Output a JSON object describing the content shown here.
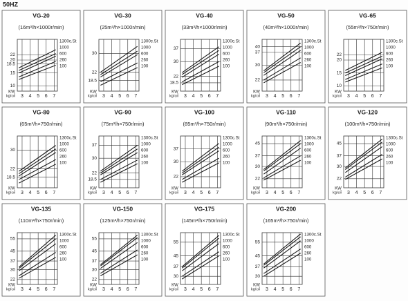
{
  "page_title": "50HZ",
  "chart_data": [
    {
      "type": "line",
      "title": "VG-20",
      "subtitle": "(16m³/h×1000r/min)",
      "xlabel": "kg/㎠",
      "ylabel": "KW",
      "x": [
        2.6,
        7.2
      ],
      "xlim": [
        2.4,
        7.4
      ],
      "xticks": [
        3,
        4,
        5,
        6,
        7
      ],
      "ylim": [
        8,
        28
      ],
      "yticks": [
        10,
        15,
        18.5,
        20,
        22
      ],
      "grid": true,
      "line_color": "#1a1a1a",
      "series": [
        {
          "name": "1300c.St",
          "values": [
            17,
            24
          ]
        },
        {
          "name": "1000",
          "values": [
            16,
            22.5
          ]
        },
        {
          "name": "600",
          "values": [
            15,
            21.5
          ]
        },
        {
          "name": "260",
          "values": [
            13.5,
            19.5
          ]
        },
        {
          "name": "100",
          "values": [
            12.5,
            18
          ]
        }
      ]
    },
    {
      "type": "line",
      "title": "VG-30",
      "subtitle": "(25m³/h×1000r/min)",
      "xlabel": "kg/㎠",
      "ylabel": "KW",
      "x": [
        2.6,
        7.2
      ],
      "xlim": [
        2.4,
        7.4
      ],
      "xticks": [
        3,
        4,
        5,
        6,
        7
      ],
      "ylim": [
        14,
        36
      ],
      "yticks": [
        18.5,
        22,
        30
      ],
      "grid": true,
      "line_color": "#1a1a1a",
      "series": [
        {
          "name": "1300c.St",
          "values": [
            22,
            33
          ]
        },
        {
          "name": "1000",
          "values": [
            21,
            31
          ]
        },
        {
          "name": "600",
          "values": [
            20,
            29.5
          ]
        },
        {
          "name": "260",
          "values": [
            18,
            26
          ]
        },
        {
          "name": "100",
          "values": [
            16.5,
            24
          ]
        }
      ]
    },
    {
      "type": "line",
      "title": "VG-40",
      "subtitle": "(33m³/h×1000r/min)",
      "xlabel": "kg/㎠",
      "ylabel": "KW",
      "x": [
        2.6,
        7.2
      ],
      "xlim": [
        2.4,
        7.4
      ],
      "xticks": [
        3,
        4,
        5,
        6,
        7
      ],
      "ylim": [
        14,
        42
      ],
      "yticks": [
        18.5,
        22,
        30,
        37
      ],
      "grid": true,
      "line_color": "#1a1a1a",
      "series": [
        {
          "name": "1300c.St",
          "values": [
            24,
            38
          ]
        },
        {
          "name": "1000",
          "values": [
            23,
            36
          ]
        },
        {
          "name": "600",
          "values": [
            21.5,
            34
          ]
        },
        {
          "name": "260",
          "values": [
            19,
            30
          ]
        },
        {
          "name": "100",
          "values": [
            17.5,
            27.5
          ]
        }
      ]
    },
    {
      "type": "line",
      "title": "VG-50",
      "subtitle": "(40m³/h×1000r/min)",
      "xlabel": "kg/㎠",
      "ylabel": "KW",
      "x": [
        2.6,
        7.2
      ],
      "xlim": [
        2.4,
        7.4
      ],
      "xticks": [
        3,
        4,
        5,
        6,
        7
      ],
      "ylim": [
        16,
        44
      ],
      "yticks": [
        22,
        30,
        37,
        40
      ],
      "grid": true,
      "line_color": "#1a1a1a",
      "series": [
        {
          "name": "1300c.St",
          "values": [
            27,
            42
          ]
        },
        {
          "name": "1000",
          "values": [
            26,
            40
          ]
        },
        {
          "name": "600",
          "values": [
            24.5,
            38
          ]
        },
        {
          "name": "260",
          "values": [
            22,
            34
          ]
        },
        {
          "name": "100",
          "values": [
            20.5,
            31.5
          ]
        }
      ]
    },
    {
      "type": "line",
      "title": "VG-65",
      "subtitle": "(55m³/h×750r/min)",
      "xlabel": "kg/㎠",
      "ylabel": "KW",
      "x": [
        2.6,
        7.2
      ],
      "xlim": [
        2.4,
        7.4
      ],
      "xticks": [
        3,
        4,
        5,
        6,
        7
      ],
      "ylim": [
        8,
        28
      ],
      "yticks": [
        10,
        15,
        20,
        22
      ],
      "grid": true,
      "line_color": "#1a1a1a",
      "series": [
        {
          "name": "1300c.St",
          "values": [
            16,
            23
          ]
        },
        {
          "name": "1000",
          "values": [
            15,
            21.5
          ]
        },
        {
          "name": "600",
          "values": [
            14,
            20.5
          ]
        },
        {
          "name": "260",
          "values": [
            12.5,
            18.5
          ]
        },
        {
          "name": "100",
          "values": [
            11.5,
            17
          ]
        }
      ]
    },
    {
      "type": "line",
      "title": "VG-80",
      "subtitle": "(65m³/h×750r/min)",
      "xlabel": "kg/㎠",
      "ylabel": "KW",
      "x": [
        2.6,
        7.2
      ],
      "xlim": [
        2.4,
        7.4
      ],
      "xticks": [
        3,
        4,
        5,
        6,
        7
      ],
      "ylim": [
        14,
        36
      ],
      "yticks": [
        18.5,
        22,
        30
      ],
      "grid": true,
      "line_color": "#1a1a1a",
      "series": [
        {
          "name": "1300c.St",
          "values": [
            21,
            32
          ]
        },
        {
          "name": "1000",
          "values": [
            20,
            30.5
          ]
        },
        {
          "name": "600",
          "values": [
            19,
            29
          ]
        },
        {
          "name": "260",
          "values": [
            17.5,
            26
          ]
        },
        {
          "name": "100",
          "values": [
            16,
            24
          ]
        }
      ]
    },
    {
      "type": "line",
      "title": "VG-90",
      "subtitle": "(75m³/h×750r/min)",
      "xlabel": "kg/㎠",
      "ylabel": "KW",
      "x": [
        2.6,
        7.2
      ],
      "xlim": [
        2.4,
        7.4
      ],
      "xticks": [
        3,
        4,
        5,
        6,
        7
      ],
      "ylim": [
        14,
        42
      ],
      "yticks": [
        18.5,
        22,
        30,
        37
      ],
      "grid": true,
      "line_color": "#1a1a1a",
      "series": [
        {
          "name": "1300c.St",
          "values": [
            23,
            37
          ]
        },
        {
          "name": "1000",
          "values": [
            22,
            35
          ]
        },
        {
          "name": "600",
          "values": [
            21,
            33
          ]
        },
        {
          "name": "260",
          "values": [
            18.5,
            29
          ]
        },
        {
          "name": "100",
          "values": [
            17,
            27
          ]
        }
      ]
    },
    {
      "type": "line",
      "title": "VG-100",
      "subtitle": "(85m³/h×750r/min)",
      "xlabel": "kg/㎠",
      "ylabel": "KW",
      "x": [
        2.6,
        7.2
      ],
      "xlim": [
        2.4,
        7.4
      ],
      "xticks": [
        3,
        4,
        5,
        6,
        7
      ],
      "ylim": [
        16,
        44
      ],
      "yticks": [
        22,
        30,
        37
      ],
      "grid": true,
      "line_color": "#1a1a1a",
      "series": [
        {
          "name": "1300c.St",
          "values": [
            25,
            40
          ]
        },
        {
          "name": "1000",
          "values": [
            24,
            38
          ]
        },
        {
          "name": "600",
          "values": [
            23,
            36
          ]
        },
        {
          "name": "260",
          "values": [
            20.5,
            32
          ]
        },
        {
          "name": "100",
          "values": [
            19,
            29.5
          ]
        }
      ]
    },
    {
      "type": "line",
      "title": "VG-110",
      "subtitle": "(90m³/h×750r/min)",
      "xlabel": "kg/㎠",
      "ylabel": "KW",
      "x": [
        2.6,
        7.2
      ],
      "xlim": [
        2.4,
        7.4
      ],
      "xticks": [
        3,
        4,
        5,
        6,
        7
      ],
      "ylim": [
        16,
        50
      ],
      "yticks": [
        22,
        30,
        37,
        45
      ],
      "grid": true,
      "line_color": "#1a1a1a",
      "series": [
        {
          "name": "1300c.St",
          "values": [
            28,
            47
          ]
        },
        {
          "name": "1000",
          "values": [
            27,
            45
          ]
        },
        {
          "name": "600",
          "values": [
            25,
            42
          ]
        },
        {
          "name": "260",
          "values": [
            22.5,
            37
          ]
        },
        {
          "name": "100",
          "values": [
            21,
            34
          ]
        }
      ]
    },
    {
      "type": "line",
      "title": "VG-120",
      "subtitle": "(100m³/h×750r/min)",
      "xlabel": "kg/㎠",
      "ylabel": "KW",
      "x": [
        2.6,
        7.2
      ],
      "xlim": [
        2.4,
        7.4
      ],
      "xticks": [
        3,
        4,
        5,
        6,
        7
      ],
      "ylim": [
        16,
        50
      ],
      "yticks": [
        22,
        30,
        37,
        45
      ],
      "grid": true,
      "line_color": "#1a1a1a",
      "series": [
        {
          "name": "1300c.St",
          "values": [
            29,
            48
          ]
        },
        {
          "name": "1000",
          "values": [
            28,
            46
          ]
        },
        {
          "name": "600",
          "values": [
            26,
            43
          ]
        },
        {
          "name": "260",
          "values": [
            23,
            38
          ]
        },
        {
          "name": "100",
          "values": [
            21.5,
            35
          ]
        }
      ]
    },
    {
      "type": "line",
      "title": "VG-135",
      "subtitle": "(110m³/h×750r/min)",
      "xlabel": "kg/㎠",
      "ylabel": "KW",
      "x": [
        2.6,
        7.2
      ],
      "xlim": [
        2.4,
        7.4
      ],
      "xticks": [
        3,
        4,
        5,
        6,
        7
      ],
      "ylim": [
        18,
        60
      ],
      "yticks": [
        22,
        30,
        37,
        45,
        55
      ],
      "grid": true,
      "line_color": "#1a1a1a",
      "series": [
        {
          "name": "1300c.St",
          "values": [
            32,
            58
          ]
        },
        {
          "name": "1000",
          "values": [
            31,
            55
          ]
        },
        {
          "name": "600",
          "values": [
            29,
            51
          ]
        },
        {
          "name": "260",
          "values": [
            25,
            44
          ]
        },
        {
          "name": "100",
          "values": [
            23,
            40
          ]
        }
      ]
    },
    {
      "type": "line",
      "title": "VG-150",
      "subtitle": "(125m³/h×750r/min)",
      "xlabel": "kg/㎠",
      "ylabel": "KW",
      "x": [
        2.6,
        7.2
      ],
      "xlim": [
        2.4,
        7.4
      ],
      "xticks": [
        3,
        4,
        5,
        6,
        7
      ],
      "ylim": [
        18,
        60
      ],
      "yticks": [
        22,
        30,
        37,
        45,
        55
      ],
      "grid": true,
      "line_color": "#1a1a1a",
      "series": [
        {
          "name": "1300c.St",
          "values": [
            34,
            58
          ]
        },
        {
          "name": "1000",
          "values": [
            33,
            56
          ]
        },
        {
          "name": "600",
          "values": [
            31,
            52
          ]
        },
        {
          "name": "260",
          "values": [
            27,
            46
          ]
        },
        {
          "name": "100",
          "values": [
            25,
            42
          ]
        }
      ]
    },
    {
      "type": "line",
      "title": "VG-175",
      "subtitle": "(145m³/h×750r/min)",
      "xlabel": "kg/㎠",
      "ylabel": "KW",
      "x": [
        2.6,
        7.2
      ],
      "xlim": [
        2.4,
        7.4
      ],
      "xticks": [
        3,
        4,
        5,
        6,
        7
      ],
      "ylim": [
        24,
        62
      ],
      "yticks": [
        30,
        37,
        45,
        55
      ],
      "grid": true,
      "line_color": "#1a1a1a",
      "series": [
        {
          "name": "1300c.St",
          "values": [
            37,
            60
          ]
        },
        {
          "name": "1000",
          "values": [
            36,
            58
          ]
        },
        {
          "name": "600",
          "values": [
            34,
            54
          ]
        },
        {
          "name": "260",
          "values": [
            30,
            48
          ]
        },
        {
          "name": "100",
          "values": [
            28,
            45
          ]
        }
      ]
    },
    {
      "type": "line",
      "title": "VG-200",
      "subtitle": "(165m³/h×750r/min)",
      "xlabel": "kg/㎠",
      "ylabel": "KW",
      "x": [
        2.6,
        7.2
      ],
      "xlim": [
        2.4,
        7.4
      ],
      "xticks": [
        3,
        4,
        5,
        6,
        7
      ],
      "ylim": [
        24,
        62
      ],
      "yticks": [
        30,
        37,
        45,
        55
      ],
      "grid": true,
      "line_color": "#1a1a1a",
      "series": [
        {
          "name": "1300c.St",
          "values": [
            39,
            61
          ]
        },
        {
          "name": "1000",
          "values": [
            38,
            59
          ]
        },
        {
          "name": "600",
          "values": [
            36,
            56
          ]
        },
        {
          "name": "260",
          "values": [
            32,
            50
          ]
        },
        {
          "name": "100",
          "values": [
            30,
            47
          ]
        }
      ]
    }
  ]
}
